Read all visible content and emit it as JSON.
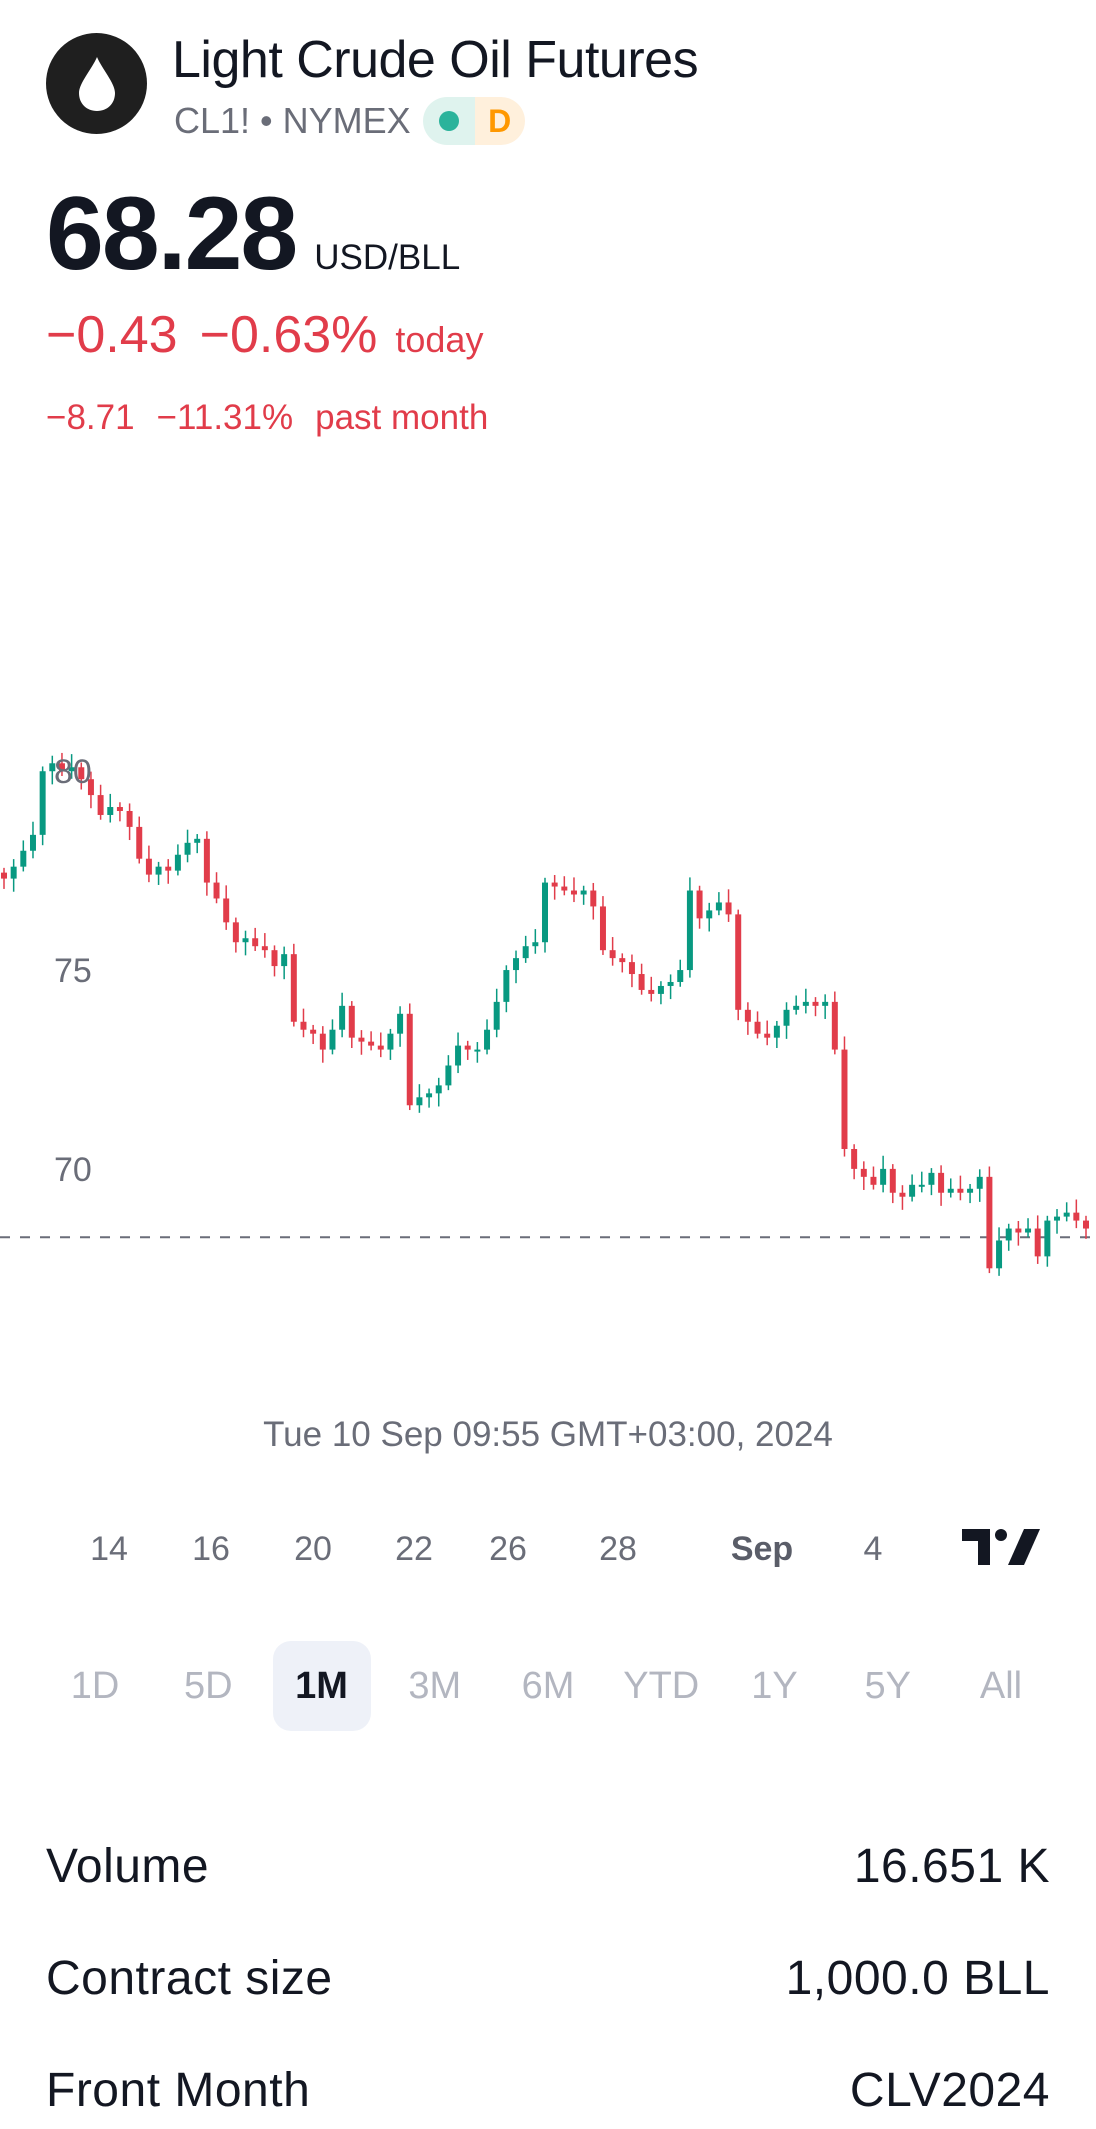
{
  "header": {
    "title": "Light Crude Oil Futures",
    "ticker": "CL1!",
    "separator": "•",
    "exchange": "NYMEX",
    "delay_badge": "D"
  },
  "quote": {
    "price": "68.28",
    "unit": "USD/BLL",
    "change_today": "−0.43",
    "change_today_pct": "−0.63%",
    "change_today_label": "today",
    "change_month": "−8.71",
    "change_month_pct": "−11.31%",
    "change_month_label": "past month"
  },
  "colors": {
    "down": "#e13c4a",
    "up": "#089981",
    "text": "#131722",
    "muted": "#6a6d78"
  },
  "chart_data": {
    "type": "candlestick",
    "y_ticks": [
      80,
      75,
      70
    ],
    "ylim": [
      66.2,
      83.3
    ],
    "reference_line": 68.28,
    "x_ticks": [
      "14",
      "16",
      "20",
      "22",
      "26",
      "28",
      "Sep",
      "4"
    ],
    "timestamp": "Tue 10 Sep 09:55 GMT+03:00, 2024",
    "closes": [
      77.3,
      77.6,
      78.0,
      78.4,
      80.0,
      80.2,
      80.0,
      80.1,
      79.8,
      79.4,
      78.9,
      79.1,
      79.0,
      78.6,
      77.8,
      77.4,
      77.6,
      77.5,
      77.9,
      78.2,
      78.3,
      77.2,
      76.8,
      76.2,
      75.7,
      75.8,
      75.6,
      75.5,
      75.1,
      75.4,
      73.7,
      73.5,
      73.4,
      73.0,
      73.5,
      74.1,
      73.3,
      73.2,
      73.1,
      73.0,
      73.4,
      73.9,
      71.6,
      71.8,
      71.9,
      72.1,
      72.6,
      73.1,
      73.0,
      73.0,
      73.5,
      74.2,
      75.0,
      75.3,
      75.6,
      75.7,
      77.2,
      77.1,
      77.0,
      76.9,
      77.0,
      76.6,
      75.5,
      75.3,
      75.2,
      74.9,
      74.5,
      74.4,
      74.6,
      74.7,
      75.0,
      77.0,
      76.3,
      76.5,
      76.7,
      76.4,
      74.0,
      73.7,
      73.4,
      73.3,
      73.6,
      74.0,
      74.1,
      74.2,
      74.1,
      74.2,
      73.0,
      70.5,
      70.0,
      69.8,
      69.6,
      70.0,
      69.4,
      69.3,
      69.6,
      69.6,
      69.9,
      69.4,
      69.5,
      69.4,
      69.5,
      69.8,
      67.5,
      68.2,
      68.5,
      68.4,
      68.5,
      67.8,
      68.7,
      68.8,
      68.9,
      68.7,
      68.5
    ]
  },
  "ranges": [
    "1D",
    "5D",
    "1M",
    "3M",
    "6M",
    "YTD",
    "1Y",
    "5Y",
    "All"
  ],
  "active_range": "1M",
  "stats": [
    {
      "label": "Volume",
      "value": "16.651 K"
    },
    {
      "label": "Contract size",
      "value": "1,000.0 BLL"
    },
    {
      "label": "Front Month",
      "value": "CLV2024"
    }
  ]
}
